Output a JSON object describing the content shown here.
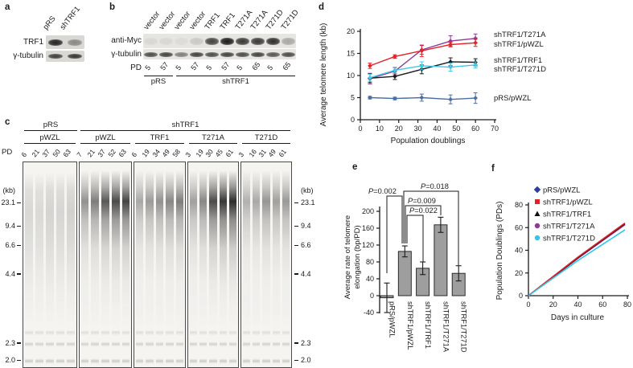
{
  "figure": {
    "panel_labels": {
      "a": "a",
      "b": "b",
      "c": "c",
      "d": "d",
      "e": "e",
      "f": "f"
    }
  },
  "panel_a": {
    "lanes": [
      "pRS",
      "shTRF1"
    ],
    "rows": [
      {
        "label": "TRF1",
        "bands": [
          0.95,
          0.42
        ]
      },
      {
        "label": "γ-tubulin",
        "bands": [
          0.8,
          0.85
        ]
      }
    ]
  },
  "panel_b": {
    "lane_labels": [
      "vector",
      "vector",
      "vector",
      "vector",
      "TRF1",
      "TRF1",
      "T271A",
      "T271A",
      "T271D",
      "T271D"
    ],
    "rows": [
      {
        "label": "anti-Myc",
        "bands": [
          0.07,
          0.07,
          0.05,
          0.14,
          0.8,
          1.0,
          0.85,
          0.85,
          0.9,
          0.3
        ]
      },
      {
        "label": "γ-tubulin",
        "bands": [
          0.75,
          0.8,
          0.5,
          0.8,
          0.75,
          0.8,
          0.75,
          0.8,
          0.7,
          0.75
        ]
      }
    ],
    "pd_label": "PD",
    "pd_values": [
      "5",
      "57",
      "5",
      "57",
      "5",
      "57",
      "5",
      "65",
      "5",
      "65"
    ],
    "groups": [
      {
        "label": "pRS"
      },
      {
        "label": "shTRF1"
      }
    ]
  },
  "panel_c": {
    "pd_label": "PD",
    "kb_label_left": "(kb)",
    "kb_label_right": "(kb)",
    "top_groups": [
      {
        "label": "pRS"
      },
      {
        "label": "shTRF1"
      }
    ],
    "boxes": [
      {
        "label": "pWZL",
        "pd": [
          "6",
          "21",
          "37",
          "50",
          "63"
        ],
        "profile": "diffuse",
        "alphas": [
          0.3,
          0.28,
          0.34,
          0.32,
          0.36
        ]
      },
      {
        "label": "pWZL",
        "pd": [
          "7",
          "21",
          "37",
          "52",
          "63"
        ],
        "profile": "top",
        "alphas": [
          0.5,
          0.6,
          0.78,
          0.85,
          0.88
        ]
      },
      {
        "label": "TRF1",
        "pd": [
          "6",
          "19",
          "34",
          "49",
          "58"
        ],
        "profile": "top",
        "alphas": [
          0.38,
          0.45,
          0.5,
          0.55,
          0.6
        ]
      },
      {
        "label": "T271A",
        "pd": [
          "3",
          "19",
          "30",
          "45",
          "61"
        ],
        "profile": "top",
        "alphas": [
          0.42,
          0.55,
          0.85,
          0.95,
          1.0
        ]
      },
      {
        "label": "T271D",
        "pd": [
          "3",
          "16",
          "31",
          "49",
          "61"
        ],
        "profile": "top",
        "alphas": [
          0.34,
          0.38,
          0.48,
          0.42,
          0.46
        ]
      }
    ],
    "kb_markers": [
      "23.1",
      "9.4",
      "6.6",
      "4.4",
      "2.3",
      "2.0"
    ]
  },
  "chart_data": [
    {
      "panel": "d",
      "type": "line",
      "xlabel": "Population doublings",
      "ylabel": "Average telomere length (kb)",
      "xlim": [
        0,
        70
      ],
      "ylim": [
        0,
        20
      ],
      "xticks": [
        0,
        10,
        20,
        30,
        40,
        50,
        60,
        70
      ],
      "yticks": [
        0,
        5,
        10,
        15,
        20
      ],
      "x": [
        5,
        18,
        32,
        47,
        60
      ],
      "series": [
        {
          "name": "shTRF1/T271A",
          "color": "#8E3A96",
          "values": [
            9.3,
            11.0,
            15.8,
            17.8,
            18.4
          ],
          "err": [
            1.2,
            0.8,
            1.0,
            1.2,
            1.0
          ]
        },
        {
          "name": "shTRF1/pWZL",
          "color": "#E32227",
          "values": [
            12.2,
            14.3,
            15.6,
            17.0,
            17.4
          ],
          "err": [
            0.6,
            0.4,
            1.3,
            0.5,
            0.8
          ]
        },
        {
          "name": "shTRF1/TRF1",
          "color": "#1a1a1a",
          "values": [
            9.4,
            9.8,
            11.4,
            13.1,
            13.0
          ],
          "err": [
            1.0,
            0.7,
            1.0,
            0.9,
            0.8
          ]
        },
        {
          "name": "shTRF1/T271D",
          "color": "#3FC8E8",
          "values": [
            9.5,
            11.2,
            12.2,
            11.9,
            12.4
          ],
          "err": [
            0.8,
            0.7,
            0.9,
            0.9,
            0.7
          ]
        },
        {
          "name": "pRS/pWZL",
          "color": "#4A6FA8",
          "values": [
            5.0,
            4.8,
            5.0,
            4.6,
            4.9
          ],
          "err": [
            0.3,
            0.3,
            0.8,
            1.0,
            1.2
          ]
        }
      ],
      "legend_position": "right"
    },
    {
      "panel": "e",
      "type": "bar",
      "ylabel_lines": [
        "Average rate of telomere",
        "elongation (bp/PD)"
      ],
      "ylim": [
        -40,
        200
      ],
      "yticks": [
        -40,
        0,
        40,
        80,
        120,
        160,
        200
      ],
      "categories": [
        "pRS/pWZL",
        "shTRF1/pWZL",
        "shTRF1/TRF1",
        "shTRF1/T271A",
        "shTRF1/T271D"
      ],
      "values": [
        -5,
        105,
        65,
        168,
        53
      ],
      "errors": [
        35,
        13,
        15,
        18,
        18
      ],
      "bar_color": "#9e9e9e",
      "pvalues": [
        {
          "label": "P=0.002",
          "from": 0,
          "to": 1
        },
        {
          "label": "P=0.022",
          "from": 1,
          "to": 2
        },
        {
          "label": "P=0.009",
          "from": 1,
          "to": 3
        },
        {
          "label": "P=0.018",
          "from": 1,
          "to": 4
        }
      ]
    },
    {
      "panel": "f",
      "type": "line",
      "xlabel": "Days in culture",
      "ylabel": "Population Doublings (PDs)",
      "xlim": [
        0,
        80
      ],
      "ylim": [
        0,
        80
      ],
      "xticks": [
        0,
        20,
        40,
        60,
        80
      ],
      "yticks": [
        0,
        20,
        40,
        60,
        80
      ],
      "series": [
        {
          "name": "pRS/pWZL",
          "color": "#2B3F94",
          "marker": "diamond",
          "points": [
            [
              0,
              0
            ],
            [
              40,
              33
            ],
            [
              78,
              63
            ]
          ]
        },
        {
          "name": "shTRF1/pWZL",
          "color": "#E32227",
          "marker": "square",
          "points": [
            [
              0,
              0
            ],
            [
              40,
              34
            ],
            [
              78,
              64
            ]
          ]
        },
        {
          "name": "shTRF1/TRF1",
          "color": "#111111",
          "marker": "triangle",
          "points": [
            [
              0,
              0
            ],
            [
              40,
              33.5
            ],
            [
              78,
              63.5
            ]
          ]
        },
        {
          "name": "shTRF1/T271A",
          "color": "#8E3A96",
          "marker": "circle",
          "points": [
            [
              0,
              0
            ],
            [
              40,
              33
            ],
            [
              78,
              62.5
            ]
          ]
        },
        {
          "name": "shTRF1/T271D",
          "color": "#35C4EA",
          "marker": "circle",
          "points": [
            [
              0,
              0
            ],
            [
              40,
              31
            ],
            [
              78,
              58
            ]
          ]
        }
      ],
      "legend_position": "top-left-inside"
    }
  ]
}
